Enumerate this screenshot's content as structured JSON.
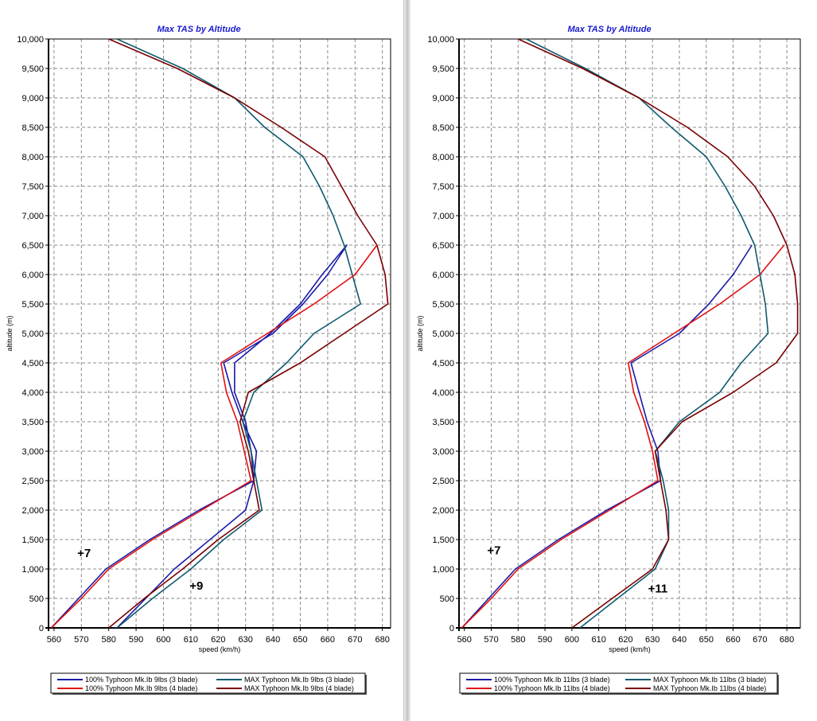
{
  "colors": {
    "series_100_3": "#1a1aa8",
    "series_100_4": "#e01010",
    "series_max_3": "#0e5a6e",
    "series_max_4": "#7a0000",
    "title": "#1a1acc"
  },
  "chart_data": [
    {
      "type": "line",
      "title": "Max TAS by Altitude",
      "xlabel": "speed (km/h)",
      "ylabel": "altitude (m)",
      "xlim": [
        558,
        683
      ],
      "ylim": [
        0,
        10000
      ],
      "xticks": [
        560,
        570,
        580,
        590,
        600,
        610,
        620,
        630,
        640,
        650,
        660,
        670,
        680
      ],
      "yticks": [
        0,
        500,
        1000,
        1500,
        2000,
        2500,
        3000,
        3500,
        4000,
        4500,
        5000,
        5500,
        6000,
        6500,
        7000,
        7500,
        8000,
        8500,
        9000,
        9500,
        10000
      ],
      "xtick_labels": [
        "560",
        "570",
        "580",
        "590",
        "600",
        "610",
        "620",
        "630",
        "640",
        "650",
        "660",
        "670",
        "680"
      ],
      "ytick_labels": [
        "0",
        "500",
        "1,000",
        "1,500",
        "2,000",
        "2,500",
        "3,000",
        "3,500",
        "4,000",
        "4,500",
        "5,000",
        "5,500",
        "6,000",
        "6,500",
        "7,000",
        "7,500",
        "8,000",
        "8,500",
        "9,000",
        "9,500",
        "10,000"
      ],
      "grid": true,
      "legend_position": "bottom",
      "annotations": [
        {
          "text": "+7",
          "x": 571,
          "y": 1200
        },
        {
          "text": "+9",
          "x": 612,
          "y": 650
        }
      ],
      "series": [
        {
          "name": "100% Typhoon Mk.Ib  9lbs (3 blade)",
          "color_key": "series_100_3",
          "points": [
            [
              559,
              0
            ],
            [
              569,
              500
            ],
            [
              579,
              1000
            ],
            [
              595,
              1500
            ],
            [
              613,
              2000
            ],
            [
              633,
              2500
            ],
            [
              634,
              3000
            ],
            [
              629,
              3500
            ],
            [
              625,
              4000
            ],
            [
              622,
              4500
            ],
            [
              640,
              5000
            ],
            [
              651,
              5500
            ],
            [
              660,
              6000
            ],
            [
              667,
              6500
            ],
            [
              658,
              6000
            ],
            [
              650,
              5500
            ],
            [
              639,
              5000
            ],
            [
              626,
              4500
            ],
            [
              626,
              4000
            ],
            [
              630,
              3500
            ],
            [
              632,
              3000
            ],
            [
              633,
              2500
            ],
            [
              630,
              2000
            ],
            [
              604,
              1000
            ],
            [
              583,
              0
            ],
            [
              582,
              0
            ]
          ]
        },
        {
          "name": "100% Typhoon Mk.Ib  9lbs (4 blade)",
          "color_key": "series_100_4",
          "points": [
            [
              559,
              0
            ],
            [
              570,
              500
            ],
            [
              580,
              1000
            ],
            [
              596,
              1500
            ],
            [
              614,
              2000
            ],
            [
              632,
              2500
            ]
          ]
        },
        {
          "name": "MAX Typhoon Mk.Ib  9lbs (3 blade)",
          "color_key": "series_max_3",
          "points": [
            [
              583,
              0
            ],
            [
              596,
              500
            ],
            [
              610,
              1000
            ],
            [
              622,
              1500
            ],
            [
              636,
              2000
            ],
            [
              632,
              3000
            ],
            [
              629,
              3500
            ],
            [
              633,
              4000
            ],
            [
              645,
              4500
            ],
            [
              655,
              5000
            ],
            [
              672,
              5500
            ],
            [
              669,
              6000
            ],
            [
              666,
              6500
            ],
            [
              662,
              7000
            ],
            [
              657,
              7500
            ],
            [
              651,
              8000
            ],
            [
              637,
              8500
            ],
            [
              626,
              9000
            ],
            [
              607,
              9500
            ],
            [
              583,
              10000
            ]
          ]
        },
        {
          "name": "MAX Typhoon Mk.Ib  9lbs (4 blade)",
          "color_key": "series_max_4",
          "points": [
            [
              580,
              0
            ],
            [
              593,
              500
            ],
            [
              607,
              1000
            ],
            [
              620,
              1500
            ],
            [
              635,
              2000
            ],
            [
              633,
              2500
            ],
            [
              631,
              3000
            ],
            [
              628,
              3500
            ],
            [
              631,
              4000
            ],
            [
              650,
              4500
            ],
            [
              666,
              5000
            ],
            [
              682,
              5500
            ],
            [
              681,
              6000
            ],
            [
              678,
              6500
            ],
            [
              671,
              7000
            ],
            [
              665,
              7500
            ],
            [
              659,
              8000
            ],
            [
              643,
              8500
            ],
            [
              626,
              9000
            ],
            [
              605,
              9500
            ],
            [
              580,
              10000
            ]
          ]
        },
        {
          "name": "",
          "color_key": "series_100_4",
          "points": [
            [
              632,
              2500
            ],
            [
              627,
              3500
            ],
            [
              623,
              4000
            ],
            [
              621,
              4500
            ],
            [
              638,
              5000
            ],
            [
              655,
              5500
            ],
            [
              670,
              6000
            ],
            [
              678,
              6500
            ]
          ]
        }
      ]
    },
    {
      "type": "line",
      "title": "Max TAS by Altitude",
      "xlabel": "speed (km/h)",
      "ylabel": "altitude (m)",
      "xlim": [
        558,
        685
      ],
      "ylim": [
        0,
        10000
      ],
      "xticks": [
        560,
        570,
        580,
        590,
        600,
        610,
        620,
        630,
        640,
        650,
        660,
        670,
        680
      ],
      "yticks": [
        0,
        500,
        1000,
        1500,
        2000,
        2500,
        3000,
        3500,
        4000,
        4500,
        5000,
        5500,
        6000,
        6500,
        7000,
        7500,
        8000,
        8500,
        9000,
        9500,
        10000
      ],
      "xtick_labels": [
        "560",
        "570",
        "580",
        "590",
        "600",
        "610",
        "620",
        "630",
        "640",
        "650",
        "660",
        "670",
        "680"
      ],
      "ytick_labels": [
        "0",
        "500",
        "1,000",
        "1,500",
        "2,000",
        "2,500",
        "3,000",
        "3,500",
        "4,000",
        "4,500",
        "5,000",
        "5,500",
        "6,000",
        "6,500",
        "7,000",
        "7,500",
        "8,000",
        "8,500",
        "9,000",
        "9,500",
        "10,000"
      ],
      "grid": true,
      "legend_position": "bottom",
      "annotations": [
        {
          "text": "+7",
          "x": 571,
          "y": 1250
        },
        {
          "text": "+11",
          "x": 632,
          "y": 600
        }
      ],
      "series": [
        {
          "name": "100% Typhoon Mk.Ib 11lbs (3 blade)",
          "color_key": "series_100_3",
          "points": [
            [
              559,
              0
            ],
            [
              569,
              500
            ],
            [
              579,
              1000
            ],
            [
              595,
              1500
            ],
            [
              613,
              2000
            ],
            [
              633,
              2500
            ],
            [
              632,
              3000
            ],
            [
              628,
              3500
            ],
            [
              625,
              4000
            ],
            [
              622,
              4500
            ],
            [
              640,
              5000
            ],
            [
              651,
              5500
            ],
            [
              660,
              6000
            ],
            [
              667,
              6500
            ]
          ]
        },
        {
          "name": "100% Typhoon Mk.Ib 11lbs (4 blade)",
          "color_key": "series_100_4",
          "points": [
            [
              559,
              0
            ],
            [
              570,
              500
            ],
            [
              580,
              1000
            ],
            [
              596,
              1500
            ],
            [
              614,
              2000
            ],
            [
              632,
              2500
            ],
            [
              630,
              3000
            ],
            [
              627,
              3500
            ],
            [
              623,
              4000
            ],
            [
              621,
              4500
            ],
            [
              638,
              5000
            ],
            [
              655,
              5500
            ],
            [
              670,
              6000
            ],
            [
              679,
              6500
            ]
          ]
        },
        {
          "name": "MAX Typhoon Mk.Ib 11lbs (3 blade)",
          "color_key": "series_max_3",
          "points": [
            [
              603,
              0
            ],
            [
              617,
              500
            ],
            [
              631,
              1000
            ],
            [
              636,
              1500
            ],
            [
              636,
              2000
            ],
            [
              634,
              2500
            ],
            [
              631,
              3000
            ],
            [
              640,
              3500
            ],
            [
              655,
              4000
            ],
            [
              663,
              4500
            ],
            [
              673,
              5000
            ],
            [
              672,
              5500
            ],
            [
              670,
              6000
            ],
            [
              668,
              6500
            ],
            [
              663,
              7000
            ],
            [
              657,
              7500
            ],
            [
              650,
              8000
            ],
            [
              637,
              8500
            ],
            [
              625,
              9000
            ],
            [
              605,
              9500
            ],
            [
              583,
              10000
            ]
          ]
        },
        {
          "name": "MAX Typhoon Mk.Ib 11lbs (4 blade)",
          "color_key": "series_max_4",
          "points": [
            [
              600,
              0
            ],
            [
              615,
              500
            ],
            [
              630,
              1000
            ],
            [
              636,
              1500
            ],
            [
              635,
              2000
            ],
            [
              633,
              2500
            ],
            [
              631,
              3000
            ],
            [
              641,
              3500
            ],
            [
              660,
              4000
            ],
            [
              676,
              4500
            ],
            [
              684,
              5000
            ],
            [
              684,
              5500
            ],
            [
              683,
              6000
            ],
            [
              680,
              6500
            ],
            [
              675,
              7000
            ],
            [
              668,
              7500
            ],
            [
              658,
              8000
            ],
            [
              643,
              8500
            ],
            [
              625,
              9000
            ],
            [
              604,
              9500
            ],
            [
              580,
              10000
            ]
          ]
        }
      ]
    }
  ]
}
